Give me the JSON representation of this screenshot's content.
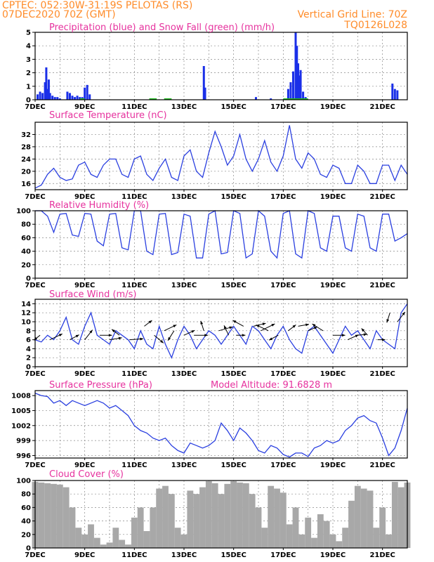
{
  "header": {
    "line1_left": "CPTEC:   052:30W-31:19S   PELOTAS (RS)",
    "line2_left": "07DEC2020 70Z (GMT)",
    "line1_right": "Vertical Grid Line: 70Z",
    "line2_right": "TQ0126L028",
    "model_altitude": "Model Altitude: 91.6828 m"
  },
  "colors": {
    "header": "#ff8c2a",
    "title": "#e6329e",
    "line": "#2a3fe0",
    "precip": "#1a2fe8",
    "snow": "#22bb22",
    "cloud": "#a8a8a8"
  },
  "date_labels": [
    "7DEC",
    "9DEC",
    "11DEC",
    "13DEC",
    "15DEC",
    "17DEC",
    "19DEC",
    "21DEC"
  ],
  "chart_data": [
    {
      "type": "bar",
      "title": "Precipitation (blue) and Snow Fall (green) (mm/h)",
      "xlim": [
        0,
        15
      ],
      "ylim": [
        0,
        5
      ],
      "yticks": [
        0,
        1,
        2,
        3,
        4,
        5
      ],
      "x_unit": "days since 7DEC 00Z",
      "x": [
        0.1,
        0.2,
        0.3,
        0.4,
        0.45,
        0.5,
        0.55,
        0.6,
        0.7,
        0.8,
        0.9,
        1.0,
        1.3,
        1.4,
        1.5,
        1.6,
        1.7,
        1.8,
        1.9,
        2.0,
        2.1,
        2.2,
        6.8,
        6.85,
        8.9,
        9.5,
        10.2,
        10.3,
        10.4,
        10.5,
        10.55,
        10.6,
        10.65,
        10.7,
        10.8,
        10.9,
        14.4,
        14.5,
        14.6
      ],
      "values": [
        0.4,
        0.6,
        0.5,
        1.3,
        2.4,
        0.8,
        1.5,
        0.5,
        0.3,
        0.2,
        0.2,
        0.1,
        0.6,
        0.5,
        0.3,
        0.2,
        0.3,
        0.2,
        0.2,
        0.9,
        1.1,
        0.4,
        2.5,
        0.9,
        0.2,
        0.1,
        0.8,
        1.3,
        2.1,
        5.0,
        4.0,
        2.7,
        1.8,
        2.2,
        0.6,
        0.2,
        1.2,
        0.8,
        0.7
      ],
      "snow": []
    },
    {
      "type": "line",
      "title": "Surface Temperature (nC)",
      "xlim": [
        0,
        15
      ],
      "ylim": [
        14,
        36
      ],
      "yticks": [
        16,
        20,
        24,
        28,
        32
      ],
      "x": [
        0,
        0.25,
        0.5,
        0.75,
        1,
        1.25,
        1.5,
        1.75,
        2,
        2.25,
        2.5,
        2.75,
        3,
        3.25,
        3.5,
        3.75,
        4,
        4.25,
        4.5,
        4.75,
        5,
        5.25,
        5.5,
        5.75,
        6,
        6.25,
        6.5,
        6.75,
        7,
        7.25,
        7.5,
        7.75,
        8,
        8.25,
        8.5,
        8.75,
        9,
        9.25,
        9.5,
        9.75,
        10,
        10.25,
        10.5,
        10.75,
        11,
        11.25,
        11.5,
        11.75,
        12,
        12.25,
        12.5,
        12.75,
        13,
        13.25,
        13.5,
        13.75,
        14,
        14.25,
        14.5,
        14.75,
        15
      ],
      "values": [
        14.5,
        15.5,
        19,
        21,
        18,
        17,
        17.5,
        22,
        23,
        19,
        18,
        22,
        24,
        24,
        19,
        18,
        24,
        25,
        19,
        17,
        21,
        24,
        18,
        17,
        25,
        27,
        20,
        18,
        26,
        33,
        28,
        22,
        25,
        32,
        24,
        20,
        24,
        30,
        23,
        20,
        25,
        35,
        24,
        21,
        26,
        24,
        19,
        18,
        22,
        21,
        16,
        16,
        22,
        20,
        16,
        16,
        22,
        22,
        17,
        22,
        19
      ]
    },
    {
      "type": "line",
      "title": "Relative Humidity (%)",
      "xlim": [
        0,
        15
      ],
      "ylim": [
        0,
        100
      ],
      "yticks": [
        0,
        20,
        40,
        60,
        80,
        100
      ],
      "x": [
        0,
        0.25,
        0.5,
        0.75,
        1,
        1.25,
        1.5,
        1.75,
        2,
        2.25,
        2.5,
        2.75,
        3,
        3.25,
        3.5,
        3.75,
        4,
        4.25,
        4.5,
        4.75,
        5,
        5.25,
        5.5,
        5.75,
        6,
        6.25,
        6.5,
        6.75,
        7,
        7.25,
        7.5,
        7.75,
        8,
        8.25,
        8.5,
        8.75,
        9,
        9.25,
        9.5,
        9.75,
        10,
        10.25,
        10.5,
        10.75,
        11,
        11.25,
        11.5,
        11.75,
        12,
        12.25,
        12.5,
        12.75,
        13,
        13.25,
        13.5,
        13.75,
        14,
        14.25,
        14.5,
        14.75,
        15
      ],
      "values": [
        100,
        100,
        92,
        68,
        95,
        96,
        64,
        62,
        96,
        95,
        55,
        48,
        95,
        96,
        45,
        42,
        100,
        100,
        40,
        35,
        95,
        96,
        35,
        38,
        95,
        92,
        30,
        30,
        95,
        100,
        36,
        38,
        100,
        96,
        30,
        36,
        100,
        92,
        40,
        30,
        96,
        100,
        36,
        30,
        100,
        96,
        45,
        40,
        92,
        92,
        45,
        40,
        95,
        92,
        45,
        40,
        95,
        95,
        55,
        60,
        66
      ]
    },
    {
      "type": "line",
      "title": "Surface Wind (m/s)",
      "xlim": [
        0,
        15
      ],
      "ylim": [
        0,
        15
      ],
      "yticks": [
        0,
        2,
        4,
        6,
        8,
        10,
        12,
        14
      ],
      "x": [
        0,
        0.25,
        0.5,
        0.75,
        1,
        1.25,
        1.5,
        1.75,
        2,
        2.25,
        2.5,
        2.75,
        3,
        3.25,
        3.5,
        3.75,
        4,
        4.25,
        4.5,
        4.75,
        5,
        5.25,
        5.5,
        5.75,
        6,
        6.25,
        6.5,
        6.75,
        7,
        7.25,
        7.5,
        7.75,
        8,
        8.25,
        8.5,
        8.75,
        9,
        9.25,
        9.5,
        9.75,
        10,
        10.25,
        10.5,
        10.75,
        11,
        11.25,
        11.5,
        11.75,
        12,
        12.25,
        12.5,
        12.75,
        13,
        13.25,
        13.5,
        13.75,
        14,
        14.25,
        14.5,
        14.75,
        15
      ],
      "values": [
        6,
        5.5,
        7,
        6,
        8,
        11,
        6,
        5,
        9,
        12,
        7,
        6,
        5,
        8,
        7,
        6,
        4,
        8,
        5,
        4,
        9,
        5,
        2,
        6,
        9,
        7,
        4,
        6,
        8,
        7,
        5,
        7,
        9,
        7,
        5,
        9,
        8,
        6,
        4,
        7,
        9,
        6,
        4,
        3,
        8,
        9,
        7,
        5,
        3,
        6,
        9,
        7,
        8,
        6,
        4,
        8,
        6,
        5,
        4,
        12,
        14
      ]
    },
    {
      "type": "line",
      "title": "Surface Pressure (hPa)",
      "xlim": [
        0,
        15
      ],
      "ylim": [
        995.5,
        1009
      ],
      "yticks": [
        996,
        999,
        1002,
        1005,
        1008
      ],
      "x": [
        0,
        0.25,
        0.5,
        0.75,
        1,
        1.25,
        1.5,
        1.75,
        2,
        2.25,
        2.5,
        2.75,
        3,
        3.25,
        3.5,
        3.75,
        4,
        4.25,
        4.5,
        4.75,
        5,
        5.25,
        5.5,
        5.75,
        6,
        6.25,
        6.5,
        6.75,
        7,
        7.25,
        7.5,
        7.75,
        8,
        8.25,
        8.5,
        8.75,
        9,
        9.25,
        9.5,
        9.75,
        10,
        10.25,
        10.5,
        10.75,
        11,
        11.25,
        11.5,
        11.75,
        12,
        12.25,
        12.5,
        12.75,
        13,
        13.25,
        13.5,
        13.75,
        14,
        14.25,
        14.5,
        14.75,
        15
      ],
      "values": [
        1008.5,
        1008,
        1007.8,
        1006.5,
        1007,
        1006,
        1007,
        1006.5,
        1006,
        1006.5,
        1007,
        1006.5,
        1005.5,
        1006,
        1005,
        1004,
        1002,
        1001,
        1000.5,
        999.5,
        999,
        999.5,
        998,
        997,
        996.5,
        998.5,
        998,
        997.5,
        998,
        999,
        1002.5,
        1001,
        999,
        1001.5,
        1000.5,
        999,
        997,
        996.5,
        998,
        997.5,
        996.2,
        995.7,
        996.5,
        996.5,
        995.8,
        997.5,
        998,
        999,
        998.5,
        999,
        1001,
        1002,
        1003.5,
        1004,
        1003,
        1002.5,
        999.5,
        996,
        997.5,
        1001,
        1005.5
      ]
    },
    {
      "type": "bar",
      "title": "Cloud Cover (%)",
      "xlim": [
        0,
        15
      ],
      "ylim": [
        0,
        100
      ],
      "yticks": [
        0,
        20,
        40,
        60,
        80,
        100
      ],
      "x": [
        0,
        0.25,
        0.5,
        0.75,
        1,
        1.25,
        1.5,
        1.75,
        2,
        2.25,
        2.5,
        2.75,
        3,
        3.25,
        3.5,
        3.75,
        4,
        4.25,
        4.5,
        4.75,
        5,
        5.25,
        5.5,
        5.75,
        6,
        6.25,
        6.5,
        6.75,
        7,
        7.25,
        7.5,
        7.75,
        8,
        8.25,
        8.5,
        8.75,
        9,
        9.25,
        9.5,
        9.75,
        10,
        10.25,
        10.5,
        10.75,
        11,
        11.25,
        11.5,
        11.75,
        12,
        12.25,
        12.5,
        12.75,
        13,
        13.25,
        13.5,
        13.75,
        14,
        14.25,
        14.5,
        14.75,
        15
      ],
      "values": [
        98,
        97,
        96,
        95,
        94,
        90,
        60,
        30,
        20,
        35,
        15,
        5,
        8,
        30,
        12,
        5,
        45,
        60,
        25,
        60,
        88,
        92,
        80,
        30,
        20,
        85,
        80,
        90,
        99,
        96,
        80,
        95,
        99,
        97,
        96,
        80,
        60,
        30,
        92,
        88,
        82,
        35,
        60,
        20,
        45,
        15,
        50,
        40,
        20,
        10,
        30,
        70,
        92,
        88,
        85,
        30,
        60,
        20,
        98,
        90,
        97
      ]
    }
  ]
}
